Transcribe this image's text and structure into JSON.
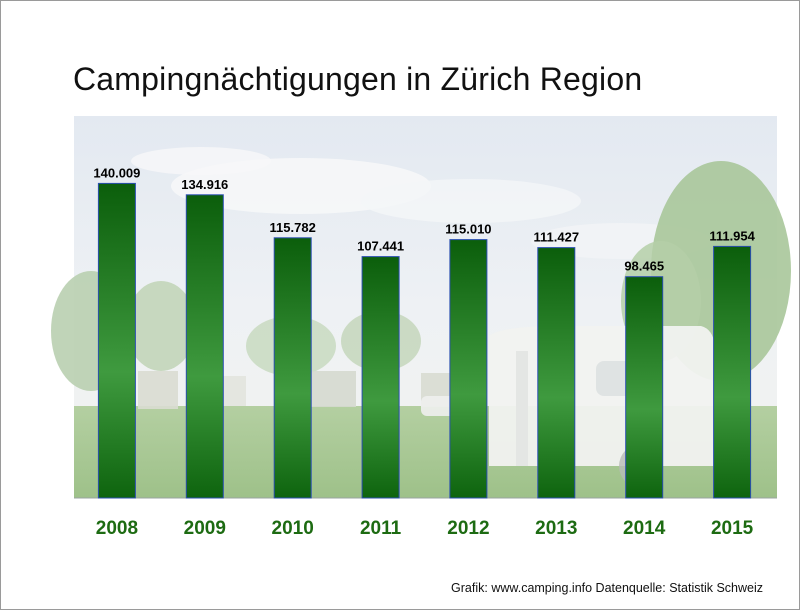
{
  "title": "Campingnächtigungen in Zürich Region",
  "source": "Grafik: www.camping.info   Datenquelle: Statistik Schweiz",
  "colors": {
    "bar_top": "#0b5e0b",
    "bar_mid": "#3f9a3f",
    "bar_bottom": "#0e640e",
    "bar_border": "#2a4fb0",
    "category_label": "#1d6b12"
  },
  "chart_data": {
    "type": "bar",
    "title": "Campingnächtigungen in Zürich Region",
    "categories": [
      "2008",
      "2009",
      "2010",
      "2011",
      "2012",
      "2013",
      "2014",
      "2015"
    ],
    "values": [
      140009,
      134916,
      115782,
      107441,
      115010,
      111427,
      98465,
      111954
    ],
    "value_labels": [
      "140.009",
      "134.916",
      "115.782",
      "107.441",
      "115.010",
      "111.427",
      "98.465",
      "111.954"
    ],
    "ylim": [
      0,
      170000
    ],
    "grid": false,
    "background": "photo-campsite-with-caravan"
  }
}
